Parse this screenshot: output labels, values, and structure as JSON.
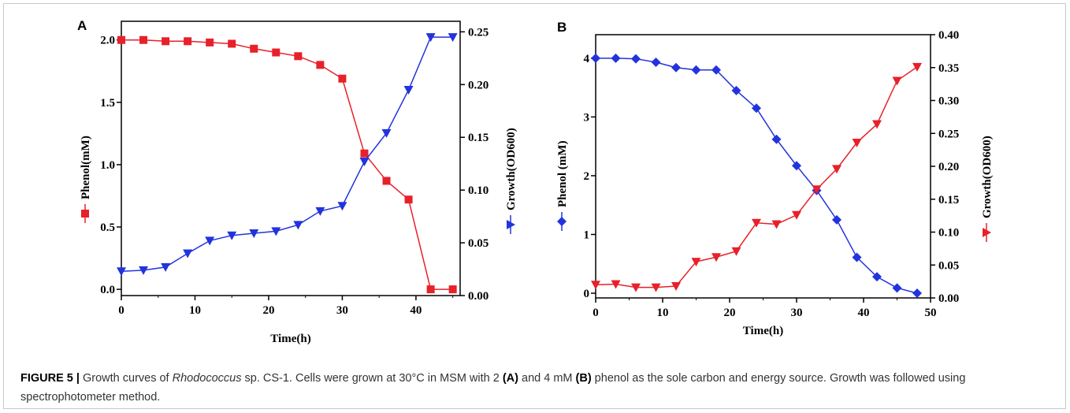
{
  "chart_data": [
    {
      "panel": "A",
      "type": "line",
      "xlabel": "Time(h)",
      "ylabel_left": "Phenol(mM)",
      "ylabel_right": "Growth(OD600)",
      "xlim": [
        0,
        46
      ],
      "ylim_left": [
        -0.05,
        2.15
      ],
      "ylim_right": [
        0,
        0.26
      ],
      "xticks": [
        0,
        10,
        20,
        30,
        40
      ],
      "yticks_left": [
        0.0,
        0.5,
        1.0,
        1.5,
        2.0
      ],
      "yticks_right": [
        0.0,
        0.05,
        0.1,
        0.15,
        0.2,
        0.25
      ],
      "x": [
        0,
        3,
        6,
        9,
        12,
        15,
        18,
        21,
        24,
        27,
        30,
        33,
        36,
        39,
        42,
        45
      ],
      "series": [
        {
          "name": "Phenol",
          "axis": "left",
          "color": "#e8202a",
          "marker": "square",
          "values": [
            2.0,
            2.0,
            1.99,
            1.99,
            1.98,
            1.97,
            1.93,
            1.9,
            1.87,
            1.8,
            1.69,
            1.09,
            0.87,
            0.72,
            0.0,
            0.0
          ]
        },
        {
          "name": "Growth",
          "axis": "right",
          "color": "#2233dd",
          "marker": "triangle-down",
          "values": [
            0.023,
            0.024,
            0.027,
            0.04,
            0.052,
            0.057,
            0.059,
            0.061,
            0.067,
            0.08,
            0.085,
            0.127,
            0.154,
            0.195,
            0.245,
            0.245
          ]
        }
      ]
    },
    {
      "panel": "B",
      "type": "line",
      "xlabel": "Time(h)",
      "ylabel_left": "Phenol (mM)",
      "ylabel_right": "Growth(OD600)",
      "xlim": [
        0,
        50
      ],
      "ylim_left": [
        -0.08,
        4.4
      ],
      "ylim_right": [
        0,
        0.4
      ],
      "xticks": [
        0,
        10,
        20,
        30,
        40,
        50
      ],
      "yticks_left": [
        0,
        1,
        2,
        3,
        4
      ],
      "yticks_right": [
        0.0,
        0.05,
        0.1,
        0.15,
        0.2,
        0.25,
        0.3,
        0.35,
        0.4
      ],
      "x": [
        0,
        3,
        6,
        9,
        12,
        15,
        18,
        21,
        24,
        27,
        30,
        33,
        36,
        39,
        42,
        45,
        48
      ],
      "series": [
        {
          "name": "Phenol",
          "axis": "left",
          "color": "#2233dd",
          "marker": "diamond",
          "values": [
            4.0,
            4.0,
            3.99,
            3.93,
            3.84,
            3.8,
            3.8,
            3.45,
            3.15,
            2.62,
            2.17,
            1.75,
            1.25,
            0.61,
            0.28,
            0.09,
            0.0
          ]
        },
        {
          "name": "Growth",
          "axis": "right",
          "color": "#e8202a",
          "marker": "triangle-down",
          "values": [
            0.02,
            0.021,
            0.016,
            0.016,
            0.018,
            0.055,
            0.062,
            0.071,
            0.114,
            0.112,
            0.126,
            0.165,
            0.196,
            0.236,
            0.264,
            0.33,
            0.351
          ]
        }
      ]
    }
  ],
  "caption": {
    "label": "FIGURE 5 |",
    "t1": " Growth curves of ",
    "organism": "Rhodococcus",
    "t2": " sp. CS-1. Cells were grown at 30°C in MSM with 2 ",
    "a": "(A)",
    "t3": " and 4 mM ",
    "b": "(B)",
    "t4": " phenol as the sole carbon and energy source. Growth was followed using spectrophotometer method."
  }
}
